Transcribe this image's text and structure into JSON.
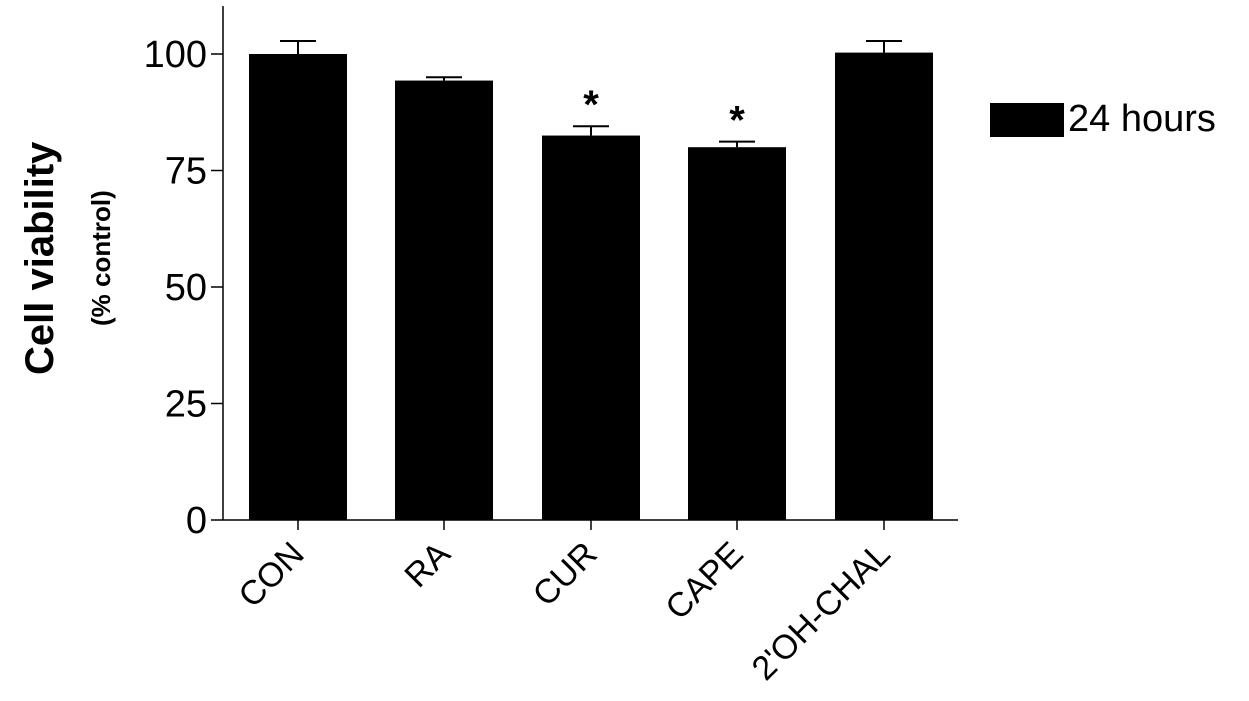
{
  "chart_data": {
    "type": "bar",
    "categories": [
      "CON",
      "RA",
      "CUR",
      "CAPE",
      "2'OH-CHAL"
    ],
    "series": [
      {
        "name": "24 hours",
        "values": [
          100,
          94.3,
          82.5,
          80.0,
          100.3
        ],
        "errors": [
          2.8,
          0.7,
          2.0,
          1.2,
          2.5
        ]
      }
    ],
    "annotations": [
      "",
      "",
      "*",
      "*",
      ""
    ],
    "ylabel": "Cell viability",
    "ylabel_sub": "(% control)",
    "xlabel": "",
    "ylim": [
      0,
      110
    ],
    "yticks": [
      0,
      25,
      50,
      75,
      100
    ],
    "ytick_labels": [
      "0",
      "25",
      "50",
      "75",
      "100"
    ],
    "grid": false,
    "legend": "right",
    "bar_color": "#000000"
  }
}
